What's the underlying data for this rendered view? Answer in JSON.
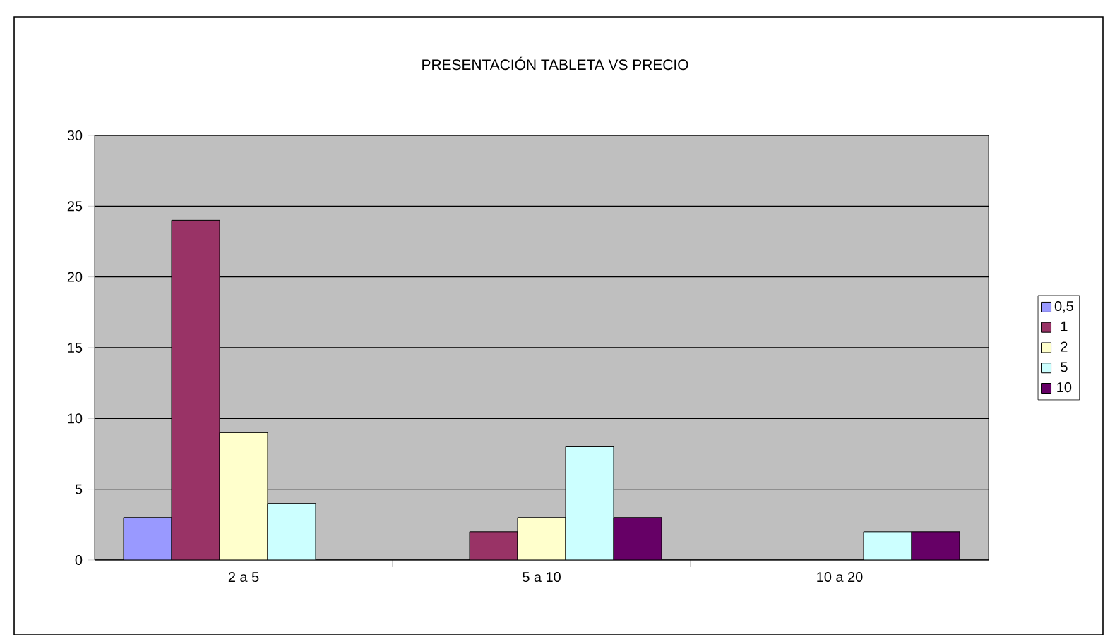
{
  "chart_data": {
    "type": "bar",
    "title": "PRESENTACIÓN TABLETA VS PRECIO",
    "categories": [
      "2 a 5",
      "5 a 10",
      "10 a 20"
    ],
    "series": [
      {
        "name": "0,5",
        "color": "#9999ff",
        "values": [
          3,
          null,
          null
        ]
      },
      {
        "name": "1",
        "color": "#993366",
        "values": [
          24,
          2,
          null
        ]
      },
      {
        "name": "2",
        "color": "#ffffcc",
        "values": [
          9,
          3,
          null
        ]
      },
      {
        "name": "5",
        "color": "#ccffff",
        "values": [
          4,
          8,
          2
        ]
      },
      {
        "name": "10",
        "color": "#660066",
        "values": [
          null,
          3,
          2
        ]
      }
    ],
    "ylim": [
      0,
      30
    ],
    "yticks": [
      0,
      5,
      10,
      15,
      20,
      25,
      30
    ],
    "grid": "y",
    "legend": "right"
  }
}
